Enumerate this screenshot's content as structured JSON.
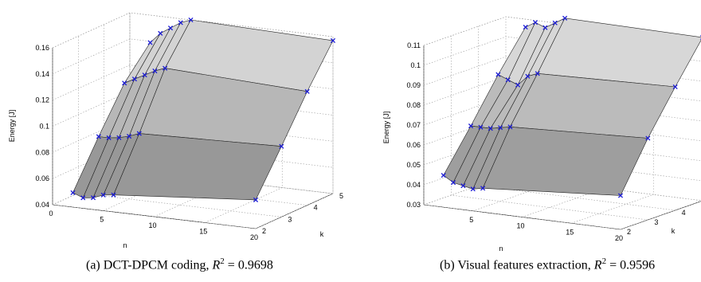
{
  "chart_data": [
    {
      "type": "surface",
      "panel": "a",
      "caption": {
        "prefix": "(a)  DCT-DPCM coding, ",
        "r2_symbol": "R",
        "r2_exp": "2",
        "r2_value": " = 0.9698"
      },
      "zlabel": "Energy [J]",
      "xlabel": "n",
      "ylabel": "k",
      "x_ticks": [
        "0",
        "5",
        "10",
        "15",
        "20"
      ],
      "y_ticks": [
        "2",
        "3",
        "4",
        "5"
      ],
      "z_ticks": [
        "0.04",
        "0.06",
        "0.08",
        "0.1",
        "0.12",
        "0.14",
        "0.16"
      ],
      "xlim": [
        0,
        20
      ],
      "ylim": [
        2,
        5
      ],
      "zlim": [
        0.04,
        0.16
      ],
      "grid": true,
      "x": [
        2,
        3,
        4,
        5,
        6,
        20
      ],
      "k": [
        2,
        3,
        4,
        5
      ],
      "energy": [
        [
          0.051,
          0.048,
          0.049,
          0.052,
          0.053,
          0.062
        ],
        [
          0.085,
          0.085,
          0.086,
          0.088,
          0.091,
          0.094
        ],
        [
          0.117,
          0.121,
          0.125,
          0.129,
          0.132,
          0.127
        ],
        [
          0.139,
          0.147,
          0.152,
          0.157,
          0.16,
          0.157
        ]
      ]
    },
    {
      "type": "surface",
      "panel": "b",
      "caption": {
        "prefix": "(b)  Visual features extraction, ",
        "r2_symbol": "R",
        "r2_exp": "2",
        "r2_value": " = 0.9596"
      },
      "zlabel": "Energy [J]",
      "xlabel": "n",
      "ylabel": "k",
      "x_ticks": [
        "5",
        "10",
        "15",
        "20"
      ],
      "y_ticks": [
        "2",
        "3",
        "4"
      ],
      "z_ticks": [
        "0.03",
        "0.04",
        "0.05",
        "0.06",
        "0.07",
        "0.08",
        "0.09",
        "0.1",
        "0.11"
      ],
      "xlim": [
        0,
        20
      ],
      "ylim": [
        2,
        5
      ],
      "zlim": [
        0.03,
        0.11
      ],
      "grid": true,
      "x": [
        2,
        3,
        4,
        5,
        6,
        20
      ],
      "k": [
        2,
        3,
        4,
        5
      ],
      "energy": [
        [
          0.046,
          0.043,
          0.042,
          0.041,
          0.042,
          0.047
        ],
        [
          0.066,
          0.066,
          0.066,
          0.067,
          0.068,
          0.071
        ],
        [
          0.087,
          0.085,
          0.083,
          0.088,
          0.09,
          0.092
        ],
        [
          0.106,
          0.109,
          0.107,
          0.11,
          0.113,
          0.112
        ]
      ]
    }
  ]
}
